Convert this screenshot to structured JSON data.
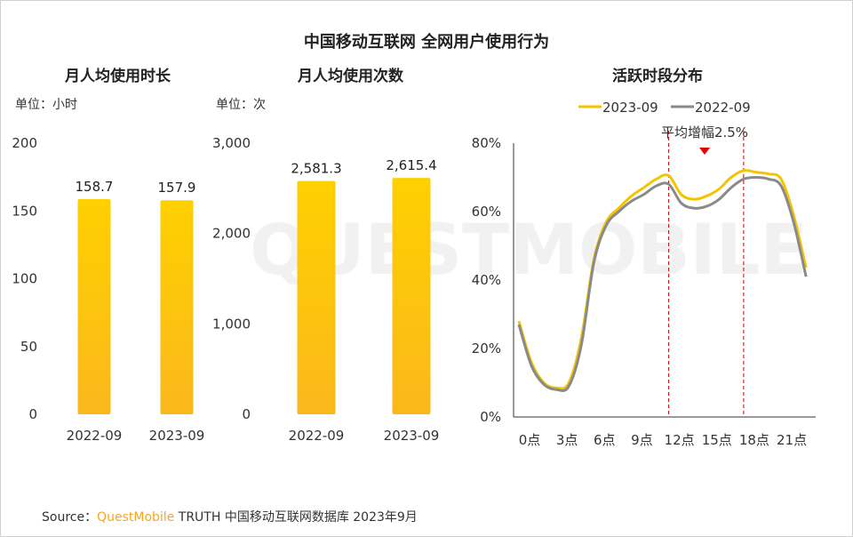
{
  "title": "中国移动互联网 全网用户使用行为",
  "source": {
    "prefix": "Source：",
    "brand": "QuestMobile",
    "rest": "TRUTH 中国移动互联网数据库 2023年9月"
  },
  "watermark": "QUESTMOBILE",
  "colors": {
    "bar_top": "#ffd000",
    "bar_bottom": "#fbb81c",
    "line_2023": "#f5c400",
    "line_2022": "#8a8a8a",
    "marker": "#e00000",
    "divider": "#c00000"
  },
  "chart_data": [
    {
      "type": "bar",
      "title": "月人均使用时长",
      "unit": "单位：小时",
      "categories": [
        "2022-09",
        "2023-09"
      ],
      "values": [
        158.7,
        157.9
      ],
      "value_labels": [
        "158.7",
        "157.9"
      ],
      "ylim": [
        0,
        200
      ],
      "yticks": [
        "0",
        "50",
        "100",
        "150",
        "200"
      ],
      "ytick_values": [
        0,
        50,
        100,
        150,
        200
      ]
    },
    {
      "type": "bar",
      "title": "月人均使用次数",
      "unit": "单位：次",
      "categories": [
        "2022-09",
        "2023-09"
      ],
      "values": [
        2581.3,
        2615.4
      ],
      "value_labels": [
        "2,581.3",
        "2,615.4"
      ],
      "ylim": [
        0,
        3000
      ],
      "yticks": [
        "0",
        "1,000",
        "2,000",
        "3,000"
      ],
      "ytick_values": [
        0,
        1000,
        2000,
        3000
      ]
    },
    {
      "type": "line",
      "title": "活跃时段分布",
      "x": [
        0,
        1,
        2,
        3,
        4,
        5,
        6,
        7,
        8,
        9,
        10,
        11,
        12,
        13,
        14,
        15,
        16,
        17,
        18,
        19,
        20,
        21,
        22,
        23
      ],
      "xticks": [
        "0点",
        "3点",
        "6点",
        "9点",
        "12点",
        "15点",
        "18点",
        "21点"
      ],
      "xtick_values": [
        0,
        3,
        6,
        9,
        12,
        15,
        18,
        21
      ],
      "yticks": [
        "0%",
        "20%",
        "40%",
        "60%",
        "80%"
      ],
      "ytick_values": [
        0,
        20,
        40,
        60,
        80
      ],
      "ylim": [
        0,
        80
      ],
      "legend": "top",
      "series": [
        {
          "name": "2023-09",
          "values": [
            28,
            16,
            10,
            8.5,
            10,
            23,
            46,
            57,
            61,
            64.5,
            67,
            69.5,
            70.5,
            65,
            63.6,
            64.5,
            66.5,
            70,
            72,
            71.5,
            71,
            69.5,
            59,
            43.6
          ]
        },
        {
          "name": "2022-09",
          "values": [
            27,
            15,
            9.5,
            8,
            9,
            21,
            45,
            56,
            60,
            63,
            65,
            67.5,
            68,
            62.5,
            61,
            61.5,
            63.5,
            67,
            69.5,
            70,
            69.5,
            67.5,
            57,
            41
          ]
        }
      ],
      "annotation": "平均增幅2.5%",
      "reference_lines_x": [
        12,
        18
      ]
    }
  ]
}
